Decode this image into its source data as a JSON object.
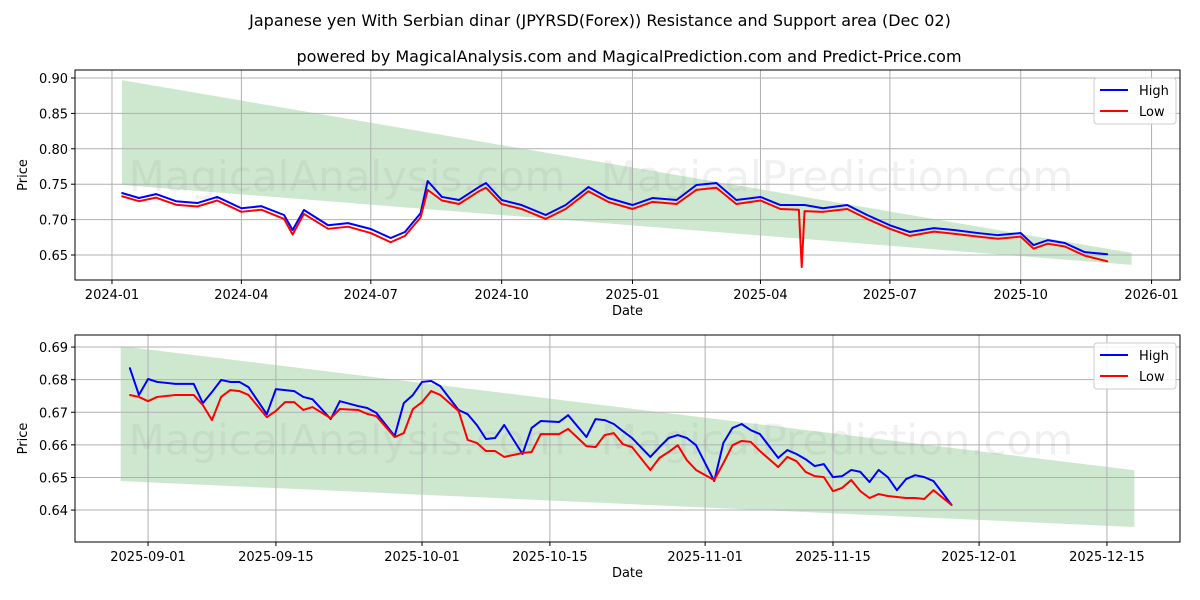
{
  "title": "Japanese yen With Serbian dinar (JPYRSD(Forex)) Resistance and Support area (Dec 02)",
  "subtitle": "powered by MagicalAnalysis.com and MagicalPrediction.com and Predict-Price.com",
  "watermarks": [
    "MagicalAnalysis.com",
    "MagicalPrediction.com"
  ],
  "colors": {
    "high": "#0000ff",
    "low": "#ff0000",
    "band": "#a5d6a7",
    "grid": "#b0b0b0"
  },
  "chart_data": [
    {
      "type": "line",
      "title": "",
      "xlabel": "Date",
      "ylabel": "Price",
      "xlim": [
        "2023-12-06",
        "2026-01-21"
      ],
      "ylim": [
        0.6147,
        0.9113
      ],
      "grid": true,
      "legend": {
        "position": "top-right",
        "entries": [
          "High",
          "Low"
        ]
      },
      "x_ticks": [
        "2024-01",
        "2024-04",
        "2024-07",
        "2024-10",
        "2025-01",
        "2025-04",
        "2025-07",
        "2025-10",
        "2026-01"
      ],
      "y_ticks": [
        "0.65",
        "0.70",
        "0.75",
        "0.80",
        "0.85",
        "0.90"
      ],
      "band": {
        "x": [
          "2024-01-08",
          "2025-12-18"
        ],
        "upper": [
          0.897,
          0.653
        ],
        "lower": [
          0.749,
          0.636
        ]
      },
      "x": [
        "2024-01-08",
        "2024-01-20",
        "2024-02-01",
        "2024-02-15",
        "2024-03-01",
        "2024-03-15",
        "2024-04-01",
        "2024-04-15",
        "2024-05-01",
        "2024-05-07",
        "2024-05-15",
        "2024-06-01",
        "2024-06-15",
        "2024-07-01",
        "2024-07-15",
        "2024-07-25",
        "2024-08-05",
        "2024-08-10",
        "2024-08-20",
        "2024-09-01",
        "2024-09-15",
        "2024-09-20",
        "2024-10-01",
        "2024-10-15",
        "2024-11-01",
        "2024-11-15",
        "2024-12-01",
        "2024-12-15",
        "2025-01-01",
        "2025-01-15",
        "2025-02-01",
        "2025-02-15",
        "2025-03-01",
        "2025-03-15",
        "2025-04-01",
        "2025-04-15",
        "2025-04-28",
        "2025-04-30",
        "2025-05-02",
        "2025-05-15",
        "2025-06-01",
        "2025-06-15",
        "2025-07-01",
        "2025-07-15",
        "2025-08-01",
        "2025-08-15",
        "2025-09-01",
        "2025-09-15",
        "2025-10-01",
        "2025-10-10",
        "2025-10-20",
        "2025-11-01",
        "2025-11-15",
        "2025-12-01"
      ],
      "series": [
        {
          "name": "High",
          "values": [
            0.7376,
            0.7305,
            0.736,
            0.726,
            0.7234,
            0.732,
            0.716,
            0.719,
            0.7065,
            0.6853,
            0.7136,
            0.692,
            0.695,
            0.6867,
            0.674,
            0.6825,
            0.709,
            0.7545,
            0.732,
            0.7277,
            0.746,
            0.7517,
            0.7277,
            0.7206,
            0.7065,
            0.7206,
            0.746,
            0.7305,
            0.7206,
            0.7305,
            0.7277,
            0.7489,
            0.7517,
            0.7277,
            0.732,
            0.7206,
            0.7206,
            0.7206,
            0.7206,
            0.716,
            0.7206,
            0.7065,
            0.692,
            0.6825,
            0.688,
            0.6853,
            0.681,
            0.678,
            0.681,
            0.664,
            0.671,
            0.667,
            0.654,
            0.651
          ]
        },
        {
          "name": "Low",
          "values": [
            0.733,
            0.726,
            0.731,
            0.721,
            0.7185,
            0.727,
            0.711,
            0.714,
            0.701,
            0.679,
            0.708,
            0.687,
            0.69,
            0.681,
            0.668,
            0.677,
            0.703,
            0.742,
            0.727,
            0.722,
            0.74,
            0.745,
            0.722,
            0.715,
            0.701,
            0.715,
            0.74,
            0.725,
            0.715,
            0.725,
            0.722,
            0.742,
            0.745,
            0.722,
            0.727,
            0.715,
            0.714,
            0.633,
            0.712,
            0.711,
            0.715,
            0.701,
            0.687,
            0.677,
            0.683,
            0.68,
            0.676,
            0.673,
            0.676,
            0.659,
            0.666,
            0.662,
            0.649,
            0.641
          ]
        }
      ]
    },
    {
      "type": "line",
      "title": "",
      "xlabel": "Date",
      "ylabel": "Price",
      "xlim": [
        "2025-08-24",
        "2025-12-23"
      ],
      "ylim": [
        0.6302,
        0.6937
      ],
      "grid": true,
      "legend": {
        "position": "top-right",
        "entries": [
          "High",
          "Low"
        ]
      },
      "x_ticks": [
        "2025-09-01",
        "2025-09-15",
        "2025-10-01",
        "2025-10-15",
        "2025-11-01",
        "2025-11-15",
        "2025-12-01",
        "2025-12-15"
      ],
      "y_ticks": [
        "0.64",
        "0.65",
        "0.66",
        "0.67",
        "0.68",
        "0.69"
      ],
      "band": {
        "x": [
          "2025-08-29",
          "2025-12-18"
        ],
        "upper": [
          0.6903,
          0.6522
        ],
        "lower": [
          0.6489,
          0.6348
        ]
      },
      "x": [
        "2025-08-30",
        "2025-08-31",
        "2025-09-01",
        "2025-09-02",
        "2025-09-04",
        "2025-09-06",
        "2025-09-07",
        "2025-09-08",
        "2025-09-09",
        "2025-09-10",
        "2025-09-11",
        "2025-09-12",
        "2025-09-14",
        "2025-09-15",
        "2025-09-16",
        "2025-09-17",
        "2025-09-18",
        "2025-09-19",
        "2025-09-21",
        "2025-09-22",
        "2025-09-24",
        "2025-09-25",
        "2025-09-26",
        "2025-09-28",
        "2025-09-29",
        "2025-09-30",
        "2025-10-01",
        "2025-10-02",
        "2025-10-03",
        "2025-10-05",
        "2025-10-06",
        "2025-10-07",
        "2025-10-08",
        "2025-10-09",
        "2025-10-10",
        "2025-10-12",
        "2025-10-13",
        "2025-10-14",
        "2025-10-16",
        "2025-10-17",
        "2025-10-19",
        "2025-10-20",
        "2025-10-21",
        "2025-10-22",
        "2025-10-23",
        "2025-10-24",
        "2025-10-26",
        "2025-10-27",
        "2025-10-28",
        "2025-10-29",
        "2025-10-30",
        "2025-10-31",
        "2025-11-02",
        "2025-11-03",
        "2025-11-04",
        "2025-11-05",
        "2025-11-06",
        "2025-11-07",
        "2025-11-09",
        "2025-11-10",
        "2025-11-11",
        "2025-11-12",
        "2025-11-13",
        "2025-11-14",
        "2025-11-15",
        "2025-11-16",
        "2025-11-17",
        "2025-11-18",
        "2025-11-19",
        "2025-11-20",
        "2025-11-21",
        "2025-11-22",
        "2025-11-23",
        "2025-11-24",
        "2025-11-25",
        "2025-11-26",
        "2025-11-28"
      ],
      "series": [
        {
          "name": "High",
          "values": [
            0.6836,
            0.6753,
            0.6802,
            0.6793,
            0.6787,
            0.6787,
            0.6728,
            0.6762,
            0.6799,
            0.6793,
            0.6793,
            0.6777,
            0.6694,
            0.6771,
            0.6768,
            0.6765,
            0.6747,
            0.674,
            0.6679,
            0.6734,
            0.6719,
            0.6713,
            0.6698,
            0.6627,
            0.6728,
            0.6753,
            0.6793,
            0.6796,
            0.678,
            0.6707,
            0.6694,
            0.6661,
            0.6618,
            0.6621,
            0.6661,
            0.6572,
            0.6652,
            0.6673,
            0.667,
            0.6691,
            0.6624,
            0.6679,
            0.6676,
            0.6664,
            0.6642,
            0.6621,
            0.6563,
            0.6593,
            0.6621,
            0.663,
            0.6621,
            0.6599,
            0.6489,
            0.6606,
            0.6652,
            0.6664,
            0.6645,
            0.6633,
            0.656,
            0.6584,
            0.6572,
            0.6556,
            0.6535,
            0.6541,
            0.6501,
            0.6504,
            0.6523,
            0.6517,
            0.6486,
            0.6523,
            0.6501,
            0.6461,
            0.6495,
            0.6507,
            0.6501,
            0.6489,
            0.6415
          ]
        },
        {
          "name": "Low",
          "values": [
            0.6753,
            0.6747,
            0.6734,
            0.6747,
            0.6753,
            0.6753,
            0.6722,
            0.6676,
            0.6747,
            0.6768,
            0.6765,
            0.6753,
            0.6685,
            0.6704,
            0.6731,
            0.6731,
            0.6707,
            0.6716,
            0.6682,
            0.671,
            0.6707,
            0.6695,
            0.6688,
            0.6624,
            0.6636,
            0.671,
            0.6731,
            0.6765,
            0.6753,
            0.6704,
            0.6615,
            0.6606,
            0.6581,
            0.6581,
            0.6563,
            0.6575,
            0.6578,
            0.6633,
            0.6633,
            0.6649,
            0.6596,
            0.6593,
            0.663,
            0.6636,
            0.6602,
            0.6593,
            0.6523,
            0.656,
            0.6578,
            0.6599,
            0.6553,
            0.6523,
            0.6492,
            0.6544,
            0.6599,
            0.6612,
            0.6609,
            0.6581,
            0.6532,
            0.6563,
            0.655,
            0.6517,
            0.6504,
            0.6501,
            0.6458,
            0.6468,
            0.6492,
            0.6458,
            0.6437,
            0.6449,
            0.6443,
            0.644,
            0.6437,
            0.6437,
            0.6434,
            0.6461,
            0.6415
          ]
        }
      ]
    }
  ]
}
